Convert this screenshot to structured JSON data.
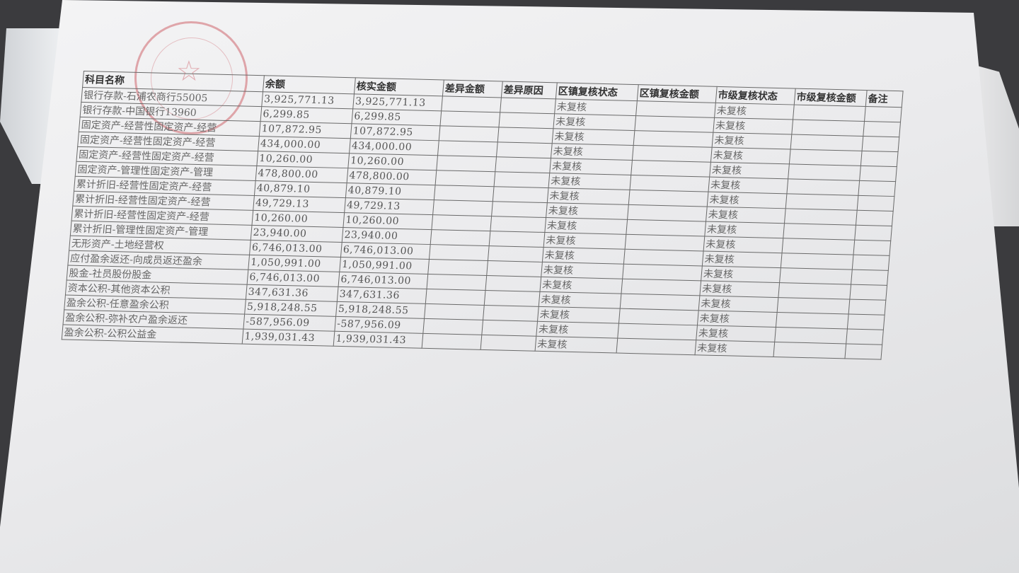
{
  "stamp": {
    "color": "#c84650",
    "icon": "star-icon"
  },
  "table": {
    "headers": [
      "科目名称",
      "余额",
      "核实金额",
      "差异金额",
      "差异原因",
      "区镇复核状态",
      "区镇复核金额",
      "市级复核状态",
      "市级复核金额",
      "备注"
    ],
    "rows": [
      {
        "name": "银行存款-石浦农商行55005",
        "balance": "3,925,771.13",
        "verified": "3,925,771.13",
        "town_status": "未复核",
        "city_status": "未复核"
      },
      {
        "name": "银行存款-中国银行13960",
        "balance": "6,299.85",
        "verified": "6,299.85",
        "town_status": "未复核",
        "city_status": "未复核"
      },
      {
        "name": "固定资产-经营性固定资产-经营",
        "balance": "107,872.95",
        "verified": "107,872.95",
        "town_status": "未复核",
        "city_status": "未复核"
      },
      {
        "name": "固定资产-经营性固定资产-经营",
        "balance": "434,000.00",
        "verified": "434,000.00",
        "town_status": "未复核",
        "city_status": "未复核"
      },
      {
        "name": "固定资产-经营性固定资产-经营",
        "balance": "10,260.00",
        "verified": "10,260.00",
        "town_status": "未复核",
        "city_status": "未复核"
      },
      {
        "name": "固定资产-管理性固定资产-管理",
        "balance": "478,800.00",
        "verified": "478,800.00",
        "town_status": "未复核",
        "city_status": "未复核"
      },
      {
        "name": "累计折旧-经营性固定资产-经营",
        "balance": "40,879.10",
        "verified": "40,879.10",
        "town_status": "未复核",
        "city_status": "未复核"
      },
      {
        "name": "累计折旧-经营性固定资产-经营",
        "balance": "49,729.13",
        "verified": "49,729.13",
        "town_status": "未复核",
        "city_status": "未复核"
      },
      {
        "name": "累计折旧-经营性固定资产-经营",
        "balance": "10,260.00",
        "verified": "10,260.00",
        "town_status": "未复核",
        "city_status": "未复核"
      },
      {
        "name": "累计折旧-管理性固定资产-管理",
        "balance": "23,940.00",
        "verified": "23,940.00",
        "town_status": "未复核",
        "city_status": "未复核"
      },
      {
        "name": "无形资产-土地经营权",
        "balance": "6,746,013.00",
        "verified": "6,746,013.00",
        "town_status": "未复核",
        "city_status": "未复核"
      },
      {
        "name": "应付盈余返还-向成员返还盈余",
        "balance": "1,050,991.00",
        "verified": "1,050,991.00",
        "town_status": "未复核",
        "city_status": "未复核"
      },
      {
        "name": "股金-社员股份股金",
        "balance": "6,746,013.00",
        "verified": "6,746,013.00",
        "town_status": "未复核",
        "city_status": "未复核"
      },
      {
        "name": "资本公积-其他资本公积",
        "balance": "347,631.36",
        "verified": "347,631.36",
        "town_status": "未复核",
        "city_status": "未复核"
      },
      {
        "name": "盈余公积-任意盈余公积",
        "balance": "5,918,248.55",
        "verified": "5,918,248.55",
        "town_status": "未复核",
        "city_status": "未复核"
      },
      {
        "name": "盈余公积-弥补农户盈余返还",
        "balance": "-587,956.09",
        "verified": "-587,956.09",
        "town_status": "未复核",
        "city_status": "未复核"
      },
      {
        "name": "盈余公积-公积公益金",
        "balance": "1,939,031.43",
        "verified": "1,939,031.43",
        "town_status": "未复核",
        "city_status": "未复核"
      }
    ]
  }
}
